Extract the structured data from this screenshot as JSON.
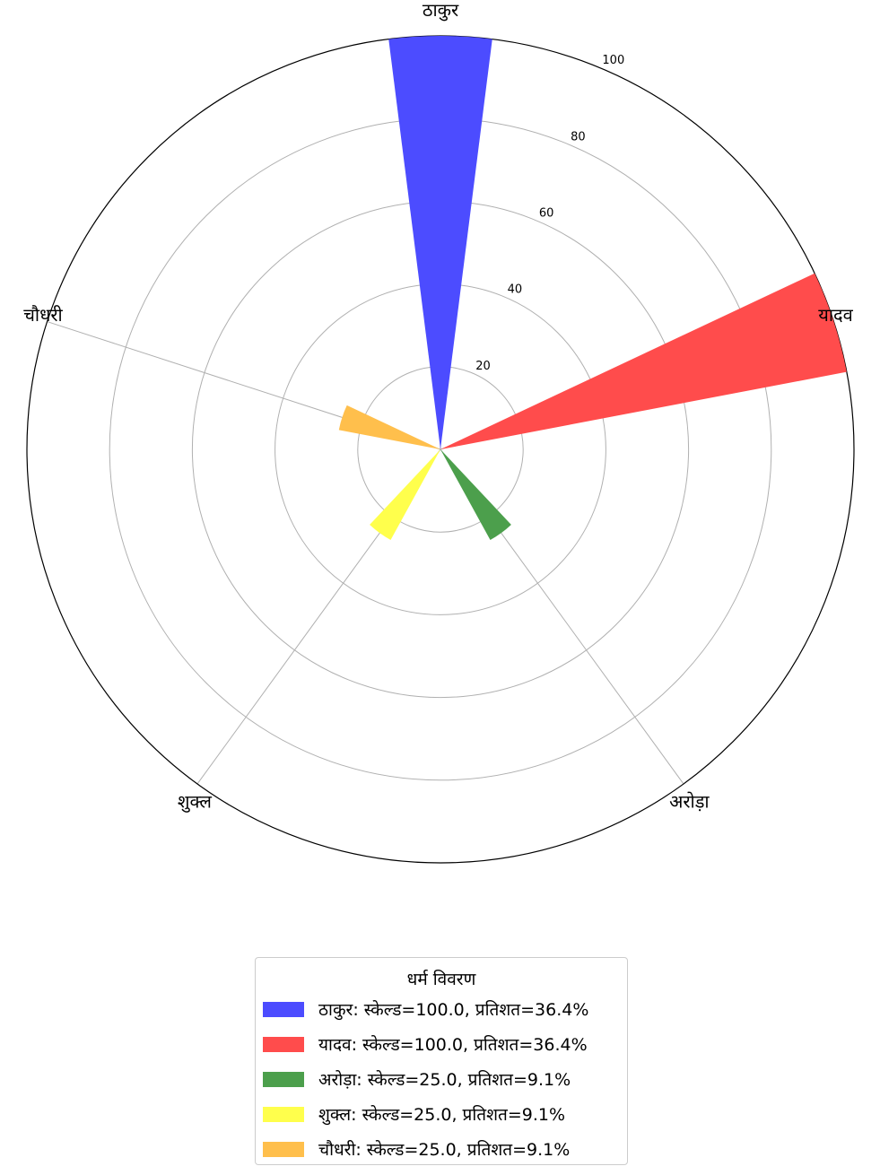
{
  "chart_data": {
    "type": "polar-bar",
    "categories": [
      "ठाकुर",
      "यादव",
      "अरोड़ा",
      "शुक्ल",
      "चौधरी"
    ],
    "values": [
      100.0,
      100.0,
      25.0,
      25.0,
      25.0
    ],
    "percentages": [
      36.4,
      36.4,
      9.1,
      9.1,
      9.1
    ],
    "colors": [
      "#4c4cff",
      "#ff4c4c",
      "#4c9f4c",
      "#ffff4c",
      "#ffbf4c"
    ],
    "rlim": [
      0,
      100
    ],
    "r_ticks": [
      "20",
      "40",
      "60",
      "80",
      "100"
    ],
    "grid": true,
    "legend_position": "bottom-center",
    "legend": {
      "title": "धर्म विवरण",
      "items": [
        "ठाकुर: स्केल्ड=100.0, प्रतिशत=36.4%",
        "यादव: स्केल्ड=100.0, प्रतिशत=36.4%",
        "अरोड़ा: स्केल्ड=25.0, प्रतिशत=9.1%",
        "शुक्ल: स्केल्ड=25.0, प्रतिशत=9.1%",
        "चौधरी: स्केल्ड=25.0, प्रतिशत=9.1%"
      ]
    }
  }
}
